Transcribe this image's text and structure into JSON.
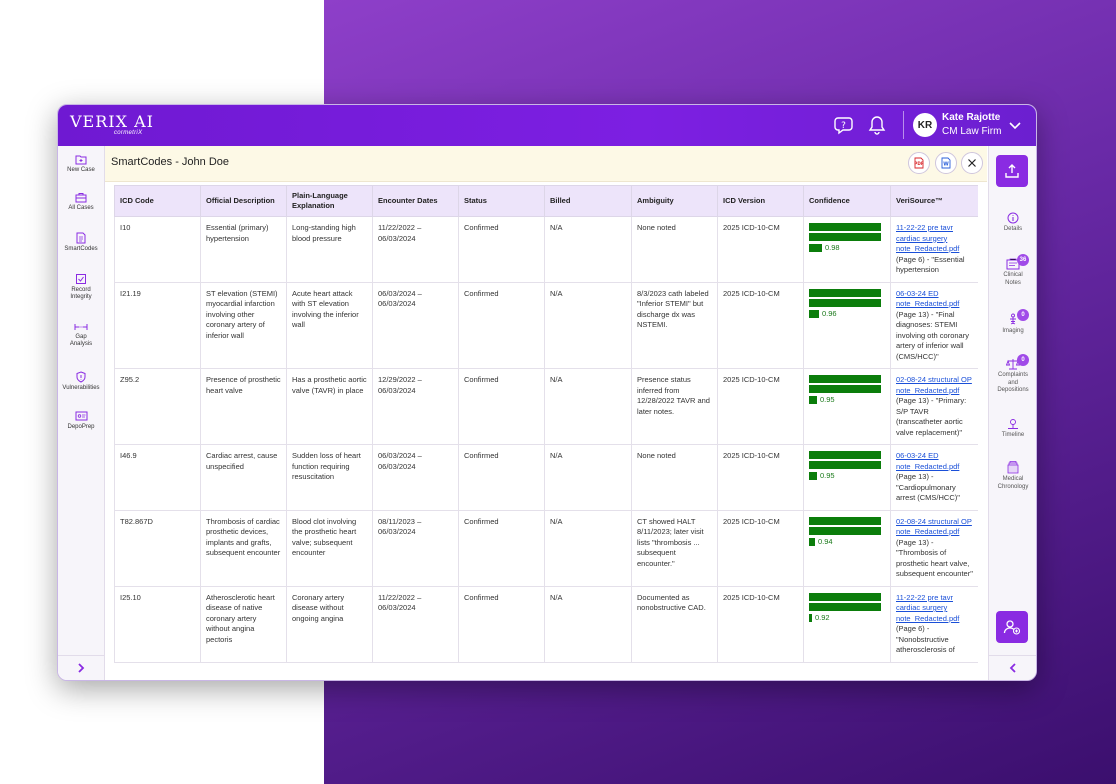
{
  "app": {
    "logo_main": "VERIX AI",
    "logo_sub": "cormetriX",
    "user": {
      "initials": "KR",
      "name": "Kate Rajotte",
      "firm": "CM Law Firm"
    }
  },
  "left_nav": [
    {
      "label": "New Case",
      "icon": "folder-plus-icon"
    },
    {
      "label": "All Cases",
      "icon": "briefcase-icon"
    },
    {
      "label": "SmartCodes",
      "icon": "document-code-icon"
    },
    {
      "label": "Record Integrity",
      "icon": "record-integrity-icon"
    },
    {
      "label": "Gap Analysis",
      "icon": "gap-analysis-icon"
    },
    {
      "label": "Vulnerabilities",
      "icon": "vulnerabilities-icon"
    },
    {
      "label": "DepoPrep",
      "icon": "depoprep-icon"
    }
  ],
  "panel": {
    "title": "SmartCodes - John Doe",
    "pdf_label": "PDF",
    "word_label": "W"
  },
  "table": {
    "headers": [
      "ICD Code",
      "Official Description",
      "Plain-Language Explanation",
      "Encounter Dates",
      "Status",
      "Billed",
      "Ambiguity",
      "ICD Version",
      "Confidence",
      "VeriSource™"
    ],
    "rows": [
      {
        "code": "I10",
        "official": "Essential (primary) hypertension",
        "plain": "Long-standing high blood pressure",
        "dates": "11/22/2022 – 06/03/2024",
        "status": "Confirmed",
        "billed": "N/A",
        "ambiguity": "None noted",
        "version": "2025 ICD-10-CM",
        "confidence": 0.98,
        "confidence_label": "0.98",
        "source_link": "11-22-22 pre tavr cardiac surgery note_Redacted.pdf",
        "source_note": "(Page 6) - \"Essential hypertension"
      },
      {
        "code": "I21.19",
        "official": "ST elevation (STEMI) myocardial infarction involving other coronary artery of inferior wall",
        "plain": "Acute heart attack with ST elevation involving the inferior wall",
        "dates": "06/03/2024 – 06/03/2024",
        "status": "Confirmed",
        "billed": "N/A",
        "ambiguity": "8/3/2023 cath labeled \"Inferior STEMI\" but discharge dx was NSTEMI.",
        "version": "2025 ICD-10-CM",
        "confidence": 0.96,
        "confidence_label": "0.96",
        "source_link": "06-03-24 ED note_Redacted.pdf",
        "source_note": "(Page 13) - \"Final diagnoses: STEMI involving oth coronary artery of inferior wall (CMS/HCC)\""
      },
      {
        "code": "Z95.2",
        "official": "Presence of prosthetic heart valve",
        "plain": "Has a prosthetic aortic valve (TAVR) in place",
        "dates": "12/29/2022 – 06/03/2024",
        "status": "Confirmed",
        "billed": "N/A",
        "ambiguity": "Presence status inferred from 12/28/2022 TAVR and later notes.",
        "version": "2025 ICD-10-CM",
        "confidence": 0.95,
        "confidence_label": "0.95",
        "source_link": "02-08-24 structural OP note_Redacted.pdf",
        "source_note": "(Page 13) - \"Primary: S/P TAVR (transcatheter aortic valve replacement)\""
      },
      {
        "code": "I46.9",
        "official": "Cardiac arrest, cause unspecified",
        "plain": "Sudden loss of heart function requiring resuscitation",
        "dates": "06/03/2024 – 06/03/2024",
        "status": "Confirmed",
        "billed": "N/A",
        "ambiguity": "None noted",
        "version": "2025 ICD-10-CM",
        "confidence": 0.95,
        "confidence_label": "0.95",
        "source_link": "06-03-24 ED note_Redacted.pdf",
        "source_note": "(Page 13) - \"Cardiopulmonary arrest (CMS/HCC)\""
      },
      {
        "code": "T82.867D",
        "official": "Thrombosis of cardiac prosthetic devices, implants and grafts, subsequent encounter",
        "plain": "Blood clot involving the prosthetic heart valve; subsequent encounter",
        "dates": "08/11/2023 – 06/03/2024",
        "status": "Confirmed",
        "billed": "N/A",
        "ambiguity": "CT showed HALT 8/11/2023; later visit lists \"thrombosis ... subsequent encounter.\"",
        "version": "2025 ICD-10-CM",
        "confidence": 0.94,
        "confidence_label": "0.94",
        "source_link": "02-08-24 structural OP note_Redacted.pdf",
        "source_note": "(Page 13) - \"Thrombosis of prosthetic heart valve, subsequent encounter\""
      },
      {
        "code": "I25.10",
        "official": "Atherosclerotic heart disease of native coronary artery without angina pectoris",
        "plain": "Coronary artery disease without ongoing angina",
        "dates": "11/22/2022 – 06/03/2024",
        "status": "Confirmed",
        "billed": "N/A",
        "ambiguity": "Documented as nonobstructive CAD.",
        "version": "2025 ICD-10-CM",
        "confidence": 0.92,
        "confidence_label": "0.92",
        "source_link": "11-22-22 pre tavr cardiac surgery note_Redacted.pdf",
        "source_note": "(Page 6) - \"Nonobstructive atherosclerosis of"
      }
    ]
  },
  "right_nav": [
    {
      "label": "Details",
      "icon": "info-icon",
      "badge": ""
    },
    {
      "label": "Clinical Notes",
      "icon": "clinical-notes-icon",
      "badge": "36"
    },
    {
      "label": "Imaging",
      "icon": "imaging-icon",
      "badge": "0"
    },
    {
      "label": "Complaints and Depositions",
      "icon": "scales-icon",
      "badge": "0"
    },
    {
      "label": "Timeline",
      "icon": "timeline-icon",
      "badge": ""
    },
    {
      "label": "Medical Chronology",
      "icon": "chronology-icon",
      "badge": ""
    }
  ],
  "colors": {
    "brand_purple": "#7a1fe0",
    "confidence_green": "#0b7d0b",
    "link_blue": "#1a4fd8",
    "title_bar": "#fdf9e6",
    "table_header": "#ede4fa"
  }
}
